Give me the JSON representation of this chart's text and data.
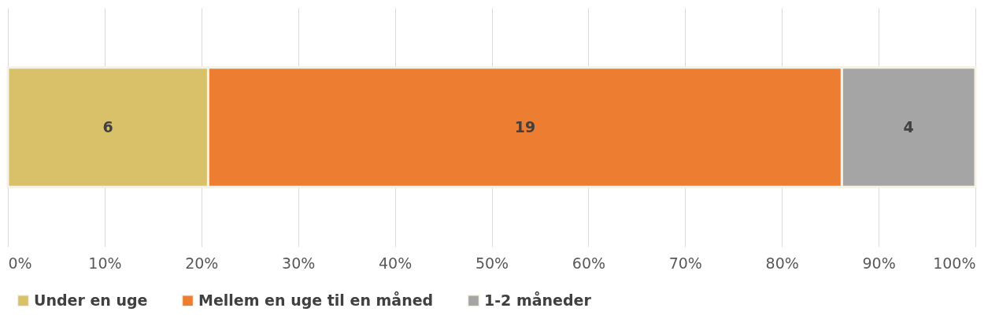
{
  "chart_data": {
    "type": "bar",
    "orientation": "horizontal",
    "stacked": true,
    "categories": [
      null
    ],
    "series": [
      {
        "name": "Under en uge",
        "color": "#d9c16a",
        "values": [
          20.7
        ]
      },
      {
        "name": "Mellem en uge til en måned",
        "color": "#ed7d31",
        "values": [
          65.5
        ]
      },
      {
        "name": "1-2 måneder",
        "color": "#a5a5a5",
        "values": [
          13.8
        ]
      }
    ],
    "annotations": [
      "6",
      "19",
      "4"
    ],
    "xlim": [
      0,
      100
    ],
    "xticks": [
      {
        "value": 0,
        "label": "0%"
      },
      {
        "value": 10,
        "label": "10%"
      },
      {
        "value": 20,
        "label": "20%"
      },
      {
        "value": 30,
        "label": "30%"
      },
      {
        "value": 40,
        "label": "40%"
      },
      {
        "value": 50,
        "label": "50%"
      },
      {
        "value": 60,
        "label": "60%"
      },
      {
        "value": 70,
        "label": "70%"
      },
      {
        "value": 80,
        "label": "80%"
      },
      {
        "value": 90,
        "label": "90%"
      },
      {
        "value": 100,
        "label": "100%"
      }
    ],
    "grid": "x",
    "legend": "bottom"
  }
}
